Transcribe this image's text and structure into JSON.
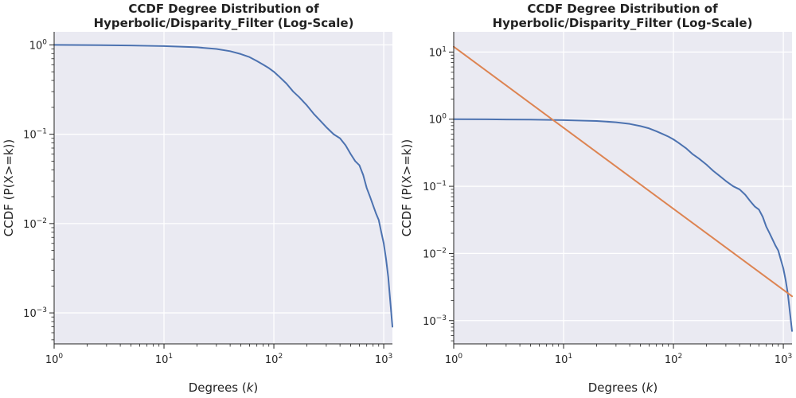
{
  "chart_data": [
    {
      "type": "line",
      "title_line1": "CCDF Degree Distribution of",
      "title_line2": "Hyperbolic/Disparity_Filter (Log-Scale)",
      "xlabel_prefix": "Degrees (",
      "xlabel_var": "k",
      "xlabel_suffix": ")",
      "ylabel": "CCDF (P(X>=k))",
      "xscale": "log",
      "yscale": "log",
      "xlim": [
        1,
        1200
      ],
      "ylim": [
        0.00045,
        1.4
      ],
      "grid": true,
      "xticks": [
        {
          "base": "10",
          "exp": "0",
          "value": 1
        },
        {
          "base": "10",
          "exp": "1",
          "value": 10
        },
        {
          "base": "10",
          "exp": "2",
          "value": 100
        },
        {
          "base": "10",
          "exp": "3",
          "value": 1000
        }
      ],
      "yticks": [
        {
          "base": "10",
          "exp": "0",
          "value": 1
        },
        {
          "base": "10",
          "exp": "−1",
          "value": 0.1
        },
        {
          "base": "10",
          "exp": "−2",
          "value": 0.01
        },
        {
          "base": "10",
          "exp": "−3",
          "value": 0.001
        }
      ],
      "series": [
        {
          "color": "#4c72b0",
          "x": [
            1,
            2,
            5,
            10,
            20,
            30,
            40,
            50,
            60,
            70,
            80,
            90,
            100,
            110,
            130,
            150,
            170,
            200,
            230,
            260,
            300,
            350,
            400,
            450,
            500,
            550,
            600,
            650,
            700,
            750,
            800,
            850,
            900,
            950,
            1000,
            1050,
            1100,
            1150,
            1200
          ],
          "y": [
            1.0,
            0.995,
            0.985,
            0.97,
            0.94,
            0.9,
            0.85,
            0.79,
            0.73,
            0.66,
            0.6,
            0.55,
            0.5,
            0.45,
            0.37,
            0.3,
            0.26,
            0.21,
            0.17,
            0.145,
            0.12,
            0.1,
            0.09,
            0.075,
            0.06,
            0.05,
            0.045,
            0.035,
            0.025,
            0.02,
            0.016,
            0.013,
            0.011,
            0.008,
            0.006,
            0.004,
            0.0025,
            0.0013,
            0.0007
          ]
        }
      ]
    },
    {
      "type": "line",
      "title_line1": "CCDF Degree Distribution of",
      "title_line2": "Hyperbolic/Disparity_Filter (Log-Scale)",
      "xlabel_prefix": "Degrees (",
      "xlabel_var": "k",
      "xlabel_suffix": ")",
      "ylabel": "CCDF (P(X>=k))",
      "xscale": "log",
      "yscale": "log",
      "xlim": [
        1,
        1200
      ],
      "ylim": [
        0.00045,
        20
      ],
      "grid": true,
      "xticks": [
        {
          "base": "10",
          "exp": "0",
          "value": 1
        },
        {
          "base": "10",
          "exp": "1",
          "value": 10
        },
        {
          "base": "10",
          "exp": "2",
          "value": 100
        },
        {
          "base": "10",
          "exp": "3",
          "value": 1000
        }
      ],
      "yticks": [
        {
          "base": "10",
          "exp": "1",
          "value": 10
        },
        {
          "base": "10",
          "exp": "0",
          "value": 1
        },
        {
          "base": "10",
          "exp": "−1",
          "value": 0.1
        },
        {
          "base": "10",
          "exp": "−2",
          "value": 0.01
        },
        {
          "base": "10",
          "exp": "−3",
          "value": 0.001
        }
      ],
      "series": [
        {
          "color": "#4c72b0",
          "x": [
            1,
            2,
            5,
            10,
            20,
            30,
            40,
            50,
            60,
            70,
            80,
            90,
            100,
            110,
            130,
            150,
            170,
            200,
            230,
            260,
            300,
            350,
            400,
            450,
            500,
            550,
            600,
            650,
            700,
            750,
            800,
            850,
            900,
            950,
            1000,
            1050,
            1100,
            1150,
            1200
          ],
          "y": [
            1.0,
            0.995,
            0.985,
            0.97,
            0.94,
            0.9,
            0.85,
            0.79,
            0.73,
            0.66,
            0.6,
            0.55,
            0.5,
            0.45,
            0.37,
            0.3,
            0.26,
            0.21,
            0.17,
            0.145,
            0.12,
            0.1,
            0.09,
            0.075,
            0.06,
            0.05,
            0.045,
            0.035,
            0.025,
            0.02,
            0.016,
            0.013,
            0.011,
            0.008,
            0.006,
            0.004,
            0.0025,
            0.0013,
            0.0007
          ]
        },
        {
          "color": "#dd8452",
          "x": [
            1,
            1200
          ],
          "y": [
            12,
            0.0023
          ]
        }
      ]
    }
  ]
}
